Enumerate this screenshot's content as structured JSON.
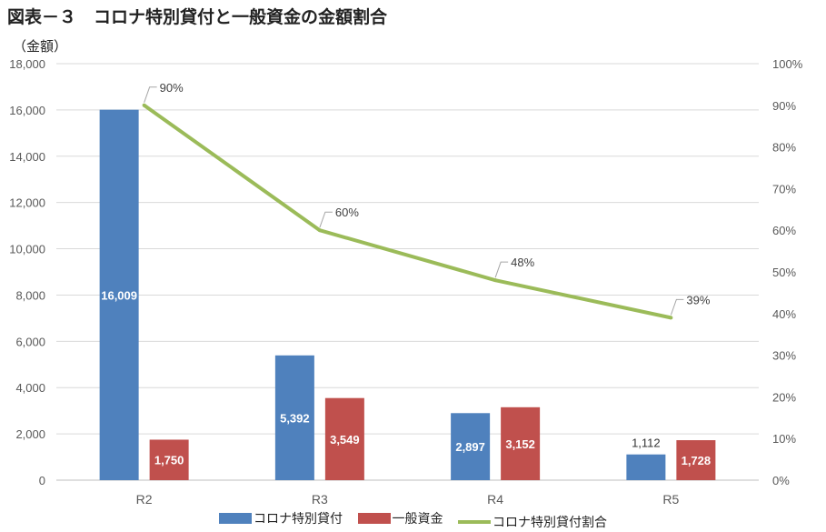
{
  "title": "図表－３　コロナ特別貸付と一般資金の金額割合",
  "unit_label": "（金額）",
  "colors": {
    "corona": "#4f81bd",
    "general": "#c0504d",
    "ratio": "#9bbb59",
    "grid": "#d9d9d9",
    "axis_text": "#595959"
  },
  "chart_data": {
    "type": "bar",
    "categories": [
      "R2",
      "R3",
      "R4",
      "R5"
    ],
    "series": [
      {
        "name": "コロナ特別貸付",
        "values": [
          16009,
          5392,
          2897,
          1112
        ],
        "labels": [
          "16,009",
          "5,392",
          "2,897",
          "1,112"
        ]
      },
      {
        "name": "一般資金",
        "values": [
          1750,
          3549,
          3152,
          1728
        ],
        "labels": [
          "1,750",
          "3,549",
          "3,152",
          "1,728"
        ]
      }
    ],
    "line_series": {
      "name": "コロナ特別貸付割合",
      "axis": "secondary",
      "values": [
        90,
        60,
        48,
        39
      ],
      "labels": [
        "90%",
        "60%",
        "48%",
        "39%"
      ]
    },
    "ylim": [
      0,
      18000
    ],
    "y2lim": [
      0,
      100
    ],
    "y_ticks": [
      "0",
      "2,000",
      "4,000",
      "6,000",
      "8,000",
      "10,000",
      "12,000",
      "14,000",
      "16,000",
      "18,000"
    ],
    "y2_ticks": [
      "0%",
      "10%",
      "20%",
      "30%",
      "40%",
      "50%",
      "60%",
      "70%",
      "80%",
      "90%",
      "100%"
    ],
    "grid": true,
    "legend_position": "bottom"
  }
}
